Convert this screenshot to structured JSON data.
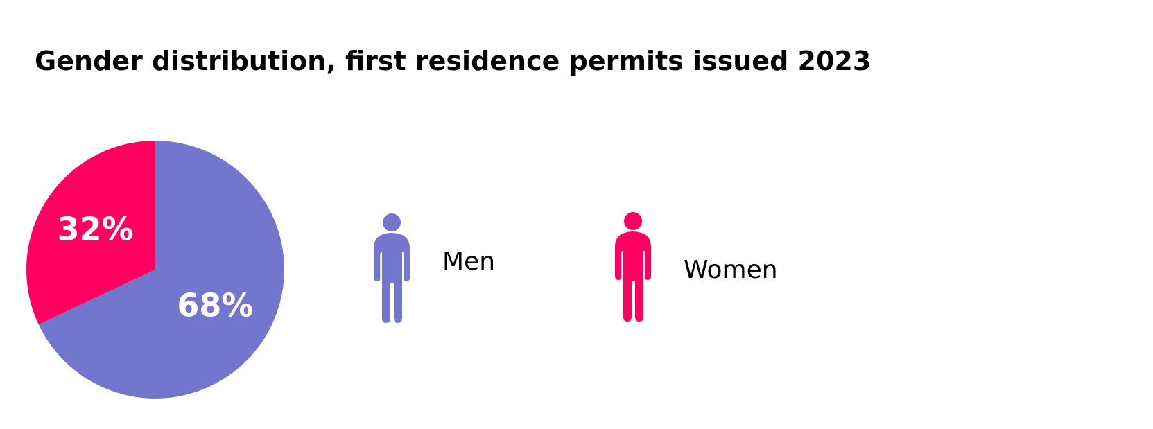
{
  "title": "Gender distribution, first residence permits issued 2023",
  "chart_data": {
    "type": "pie",
    "title": "Gender distribution, first residence permits issued 2023",
    "slices": [
      {
        "label": "Men",
        "value": 68,
        "display": "68%",
        "color": "#7276cc"
      },
      {
        "label": "Women",
        "value": 32,
        "display": "32%",
        "color": "#ff0060"
      }
    ],
    "legend_placement": "right"
  },
  "legend": {
    "men": {
      "label": "Men",
      "color": "#7276cc",
      "icon": "man-figure-icon"
    },
    "women": {
      "label": "Women",
      "color": "#ff0060",
      "icon": "woman-figure-icon"
    }
  }
}
